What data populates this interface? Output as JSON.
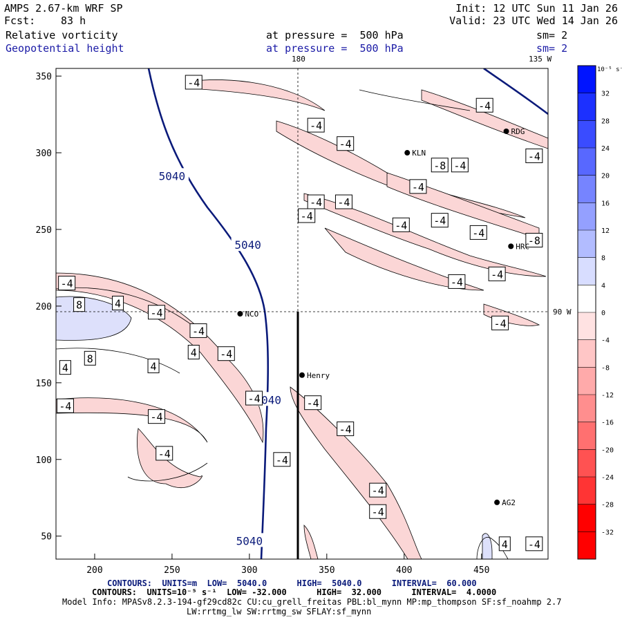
{
  "header": {
    "title": "AMPS 2.67-km WRF SP",
    "forecast_label": "Fcst:",
    "forecast_value": "83 h",
    "init": "Init: 12 UTC Sun 11 Jan 26",
    "valid": "Valid: 23 UTC Wed 14 Jan 26",
    "field1_name": "Relative vorticity",
    "field1_level": "at pressure =  500 hPa",
    "field1_smooth": "sm= 2",
    "field2_name": "Geopotential height",
    "field2_level": "at pressure =  500 hPa",
    "field2_smooth": "sm= 2"
  },
  "meridians": {
    "top_180": "180",
    "top_135w": "135 W",
    "right_90w": "90 W"
  },
  "axes": {
    "x_ticks": [
      "200",
      "250",
      "300",
      "350",
      "400",
      "450"
    ],
    "y_ticks": [
      "350",
      "300",
      "250",
      "200",
      "150",
      "100",
      "50"
    ],
    "x_range": [
      175,
      493
    ],
    "y_range": [
      35,
      355
    ]
  },
  "colorbar": {
    "unit": "10⁻⁵ s⁻¹",
    "levels": [
      "32",
      "28",
      "24",
      "20",
      "16",
      "12",
      "8",
      "4",
      "0",
      "-4",
      "-8",
      "-12",
      "-16",
      "-20",
      "-24",
      "-28",
      "-32"
    ]
  },
  "stations": [
    {
      "name": "RDG",
      "x": 466,
      "y": 314
    },
    {
      "name": "KLN",
      "x": 402,
      "y": 300
    },
    {
      "name": "HRC",
      "x": 469,
      "y": 239
    },
    {
      "name": "NCO",
      "x": 294,
      "y": 195
    },
    {
      "name": "Henry",
      "x": 334,
      "y": 155
    },
    {
      "name": "AG2",
      "x": 460,
      "y": 72
    }
  ],
  "height_labels": [
    {
      "text": "5040",
      "x": 250,
      "y": 285
    },
    {
      "text": "5040",
      "x": 299,
      "y": 240
    },
    {
      "text": "5040",
      "x": 312,
      "y": 139
    },
    {
      "text": "5040",
      "x": 300,
      "y": 47
    }
  ],
  "vort_labels": [
    {
      "text": "-4",
      "x": 264,
      "y": 346
    },
    {
      "text": "-4",
      "x": 343,
      "y": 318
    },
    {
      "text": "-4",
      "x": 362,
      "y": 306
    },
    {
      "text": "-4",
      "x": 452,
      "y": 331
    },
    {
      "text": "-4",
      "x": 484,
      "y": 298
    },
    {
      "text": "-8",
      "x": 423,
      "y": 292
    },
    {
      "text": "-4",
      "x": 436,
      "y": 292
    },
    {
      "text": "-4",
      "x": 409,
      "y": 278
    },
    {
      "text": "-4",
      "x": 343,
      "y": 268
    },
    {
      "text": "-4",
      "x": 361,
      "y": 268
    },
    {
      "text": "-4",
      "x": 337,
      "y": 259
    },
    {
      "text": "-4",
      "x": 398,
      "y": 253
    },
    {
      "text": "-4",
      "x": 423,
      "y": 256
    },
    {
      "text": "-4",
      "x": 448,
      "y": 248
    },
    {
      "text": "-8",
      "x": 484,
      "y": 243
    },
    {
      "text": "-4",
      "x": 460,
      "y": 221
    },
    {
      "text": "-4",
      "x": 434,
      "y": 216
    },
    {
      "text": "-4",
      "x": 182,
      "y": 215
    },
    {
      "text": "8",
      "x": 190,
      "y": 201
    },
    {
      "text": "4",
      "x": 215,
      "y": 202
    },
    {
      "text": "-4",
      "x": 240,
      "y": 196
    },
    {
      "text": "-4",
      "x": 267,
      "y": 184
    },
    {
      "text": "4",
      "x": 264,
      "y": 170
    },
    {
      "text": "-4",
      "x": 285,
      "y": 169
    },
    {
      "text": "8",
      "x": 197,
      "y": 166
    },
    {
      "text": "4",
      "x": 181,
      "y": 160
    },
    {
      "text": "4",
      "x": 238,
      "y": 161
    },
    {
      "text": "-4",
      "x": 462,
      "y": 189
    },
    {
      "text": "-4",
      "x": 181,
      "y": 135
    },
    {
      "text": "-4",
      "x": 240,
      "y": 128
    },
    {
      "text": "-4",
      "x": 303,
      "y": 140
    },
    {
      "text": "-4",
      "x": 341,
      "y": 137
    },
    {
      "text": "-4",
      "x": 362,
      "y": 120
    },
    {
      "text": "-4",
      "x": 245,
      "y": 104
    },
    {
      "text": "-4",
      "x": 321,
      "y": 100
    },
    {
      "text": "-4",
      "x": 383,
      "y": 80
    },
    {
      "text": "-4",
      "x": 383,
      "y": 66
    },
    {
      "text": "4",
      "x": 465,
      "y": 45
    },
    {
      "text": "-4",
      "x": 484,
      "y": 45
    }
  ],
  "footer": {
    "line1_a": "CONTOURS:  UNITS=m  LOW=  5040.0      HIGH=  5040.0      INTERVAL=  60.000",
    "line2_a": "CONTOURS:  UNITS=10⁻⁵ s⁻¹  LOW= -32.000      HIGH=  32.000      INTERVAL=  4.0000",
    "line3": "Model Info: MPASv8.2.3-194-gf29cd82c CU:cu_grell_freitas PBL:bl_mynn MP:mp_thompson SF:sf_noahmp 2.7",
    "line4": "LW:rrtmg_lw SW:rrtmg_sw SFLAY:sf_mynn"
  },
  "colors": {
    "height_contour": "#0a1a7a",
    "neg_shade": "#fbd6d6",
    "pos_shade": "#dde0fb"
  }
}
